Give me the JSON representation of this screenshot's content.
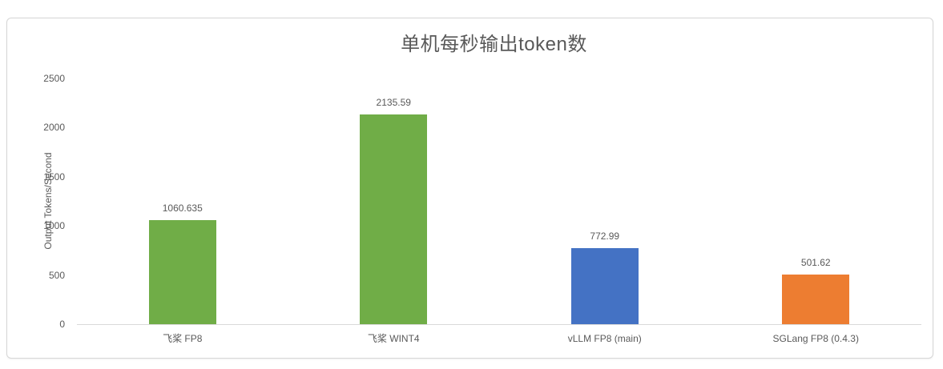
{
  "chart_data": {
    "type": "bar",
    "title": "单机每秒输出token数",
    "xlabel": "",
    "ylabel": "Output Tokens/Second",
    "categories": [
      "飞桨 FP8",
      "飞桨 WINT4",
      "vLLM FP8 (main)",
      "SGLang FP8 (0.4.3)"
    ],
    "values": [
      1060.635,
      2135.59,
      772.99,
      501.62
    ],
    "value_labels": [
      "1060.635",
      "2135.59",
      "772.99",
      "501.62"
    ],
    "bar_colors": [
      "#70AD47",
      "#70AD47",
      "#4472C4",
      "#ED7D31"
    ],
    "ylim": [
      0,
      2500
    ],
    "yticks": [
      0,
      500,
      1000,
      1500,
      2000,
      2500
    ],
    "grid": false,
    "legend": "none",
    "colors": {
      "text": "#595959",
      "axis_line": "#d9d9d9",
      "green": "#70AD47",
      "blue": "#4472C4",
      "orange": "#ED7D31"
    }
  }
}
